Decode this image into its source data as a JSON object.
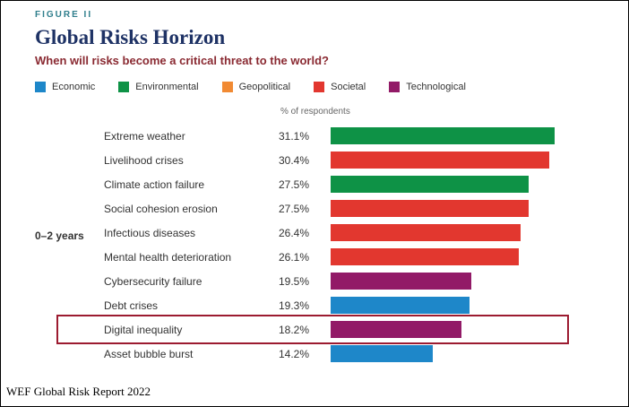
{
  "figure_label": "FIGURE II",
  "title": "Global Risks Horizon",
  "subtitle": "When will risks become a critical threat to the world?",
  "axis_note": "% of respondents",
  "group_label": "0–2 years",
  "source": "WEF Global Risk Report 2022",
  "colors": {
    "highlight_border": "#9c1b30",
    "title": "#1e3265",
    "figure_label": "#2f7e8c",
    "subtitle": "#8a2a32",
    "categories": {
      "Economic": "#1e87c9",
      "Environmental": "#0e9246",
      "Geopolitical": "#f18a33",
      "Societal": "#e2372f",
      "Technological": "#921a67"
    }
  },
  "chart_data": {
    "type": "bar",
    "orientation": "horizontal",
    "title": "Global Risks Horizon",
    "subtitle": "When will risks become a critical threat to the world?",
    "xlabel": "% of respondents",
    "xlim": [
      0,
      31.1
    ],
    "grid": false,
    "legend_position": "top",
    "group": "0–2 years",
    "legend": [
      "Economic",
      "Environmental",
      "Geopolitical",
      "Societal",
      "Technological"
    ],
    "rows": [
      {
        "label": "Extreme weather",
        "value": 31.1,
        "display": "31.1%",
        "category": "Environmental",
        "highlight": false
      },
      {
        "label": "Livelihood crises",
        "value": 30.4,
        "display": "30.4%",
        "category": "Societal",
        "highlight": false
      },
      {
        "label": "Climate action failure",
        "value": 27.5,
        "display": "27.5%",
        "category": "Environmental",
        "highlight": false
      },
      {
        "label": "Social cohesion erosion",
        "value": 27.5,
        "display": "27.5%",
        "category": "Societal",
        "highlight": false
      },
      {
        "label": "Infectious diseases",
        "value": 26.4,
        "display": "26.4%",
        "category": "Societal",
        "highlight": false
      },
      {
        "label": "Mental health deterioration",
        "value": 26.1,
        "display": "26.1%",
        "category": "Societal",
        "highlight": false
      },
      {
        "label": "Cybersecurity failure",
        "value": 19.5,
        "display": "19.5%",
        "category": "Technological",
        "highlight": false
      },
      {
        "label": "Debt crises",
        "value": 19.3,
        "display": "19.3%",
        "category": "Economic",
        "highlight": false
      },
      {
        "label": "Digital inequality",
        "value": 18.2,
        "display": "18.2%",
        "category": "Technological",
        "highlight": true
      },
      {
        "label": "Asset bubble burst",
        "value": 14.2,
        "display": "14.2%",
        "category": "Economic",
        "highlight": false
      }
    ]
  }
}
